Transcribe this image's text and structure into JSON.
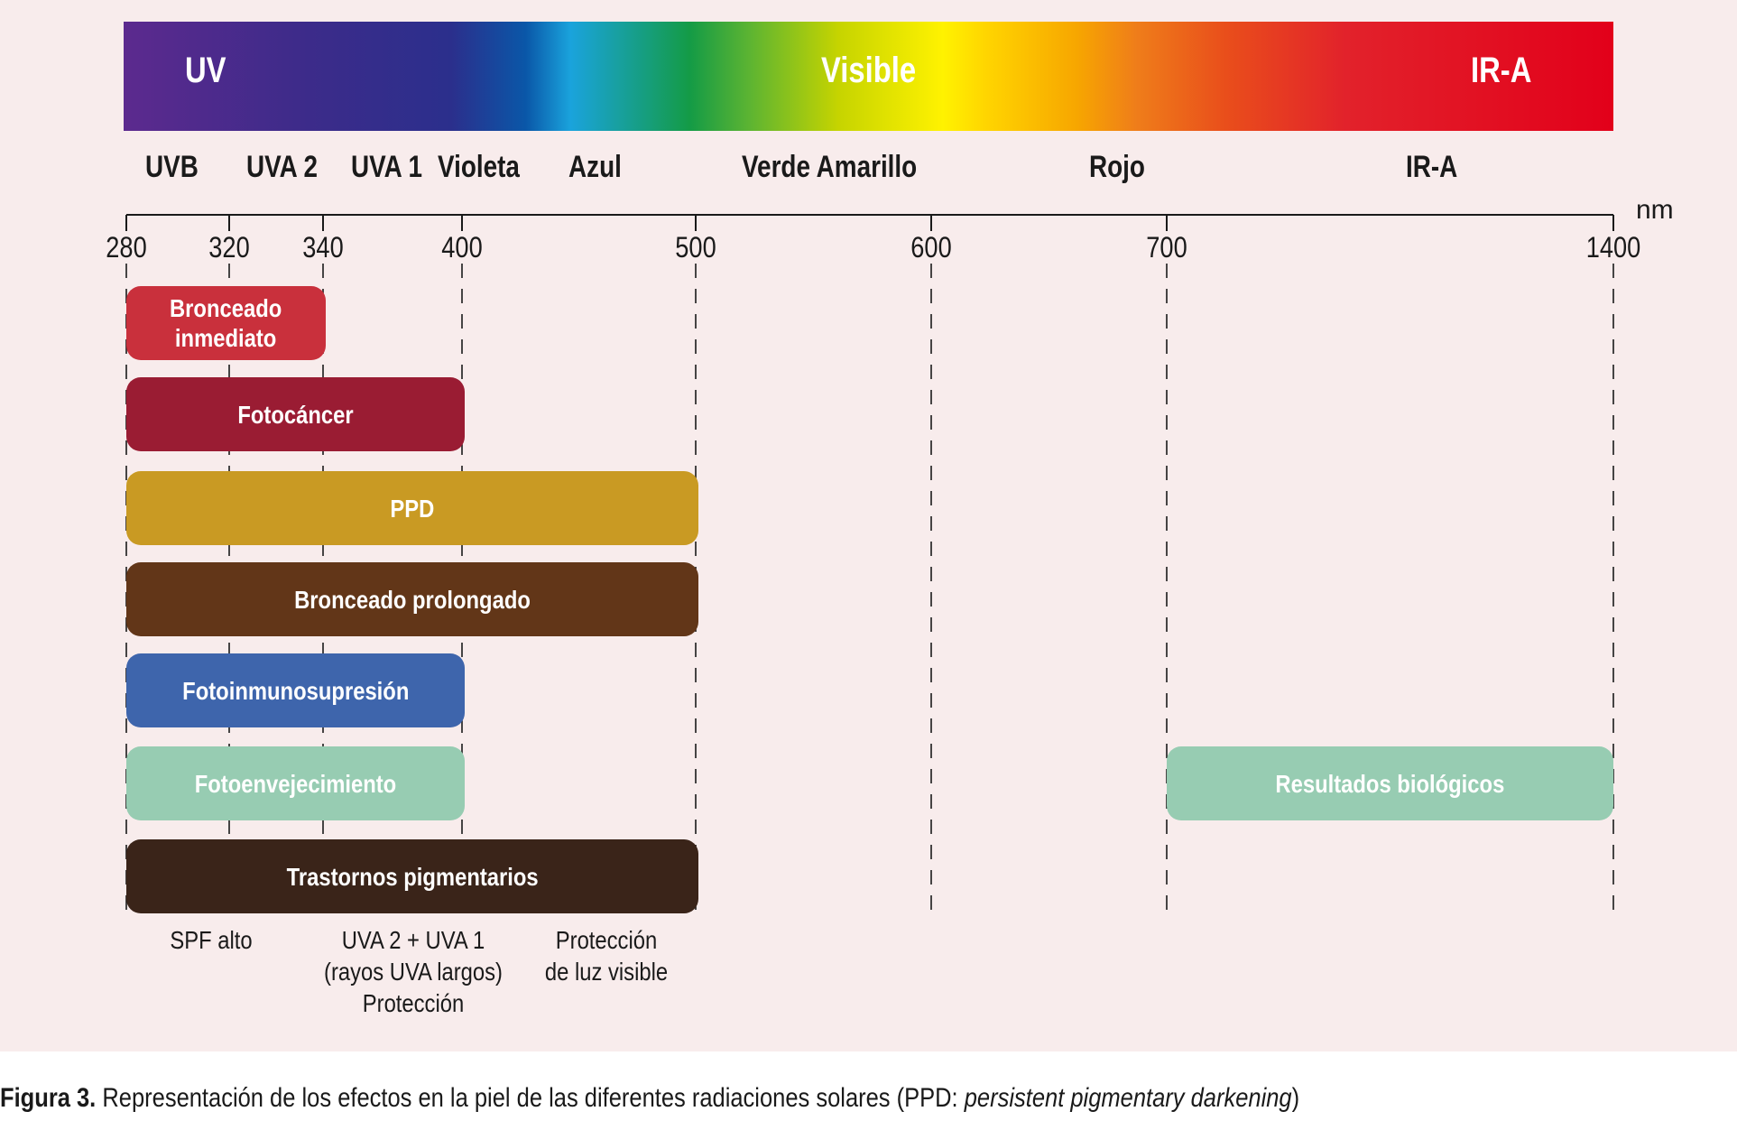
{
  "spectrum": {
    "bands": [
      "UV",
      "Visible",
      "IR-A"
    ],
    "regions": [
      "UVB",
      "UVA 2",
      "UVA 1",
      "Violeta",
      "Azul",
      "Verde Amarillo",
      "Rojo",
      "IR-A"
    ]
  },
  "axis": {
    "ticks": [
      "280",
      "320",
      "340",
      "400",
      "500",
      "600",
      "700",
      "1400"
    ],
    "unit": "nm"
  },
  "effects": [
    {
      "label": "Bronceado\ninmediato",
      "from": "280",
      "to": "340",
      "color": "#c9303c"
    },
    {
      "label": "Fotocáncer",
      "from": "280",
      "to": "400",
      "color": "#9a1c33"
    },
    {
      "label": "PPD",
      "from": "280",
      "to": "500",
      "color": "#c99a23"
    },
    {
      "label": "Bronceado prolongado",
      "from": "280",
      "to": "500",
      "color": "#623618"
    },
    {
      "label": "Fotoinmunosupresión",
      "from": "280",
      "to": "400",
      "color": "#3e65ac"
    },
    {
      "label": "Fotoenvejecimiento",
      "from": "280",
      "to": "400",
      "color": "#97ccb2"
    },
    {
      "label": "Resultados biológicos",
      "from": "700",
      "to": "1400",
      "color": "#97ccb2"
    },
    {
      "label": "Trastornos pigmentarios",
      "from": "280",
      "to": "500",
      "color": "#3a2419"
    }
  ],
  "protection": [
    "SPF alto",
    "UVA 2 + UVA 1\n(rayos UVA largos)\nProtección",
    "Protección\nde luz visible"
  ],
  "caption": {
    "label": "Figura 3.",
    "text": " Representación de los efectos en la piel de las diferentes radiaciones solares (PPD: ",
    "italic": "persistent pigmentary darkening",
    "end": ")"
  }
}
